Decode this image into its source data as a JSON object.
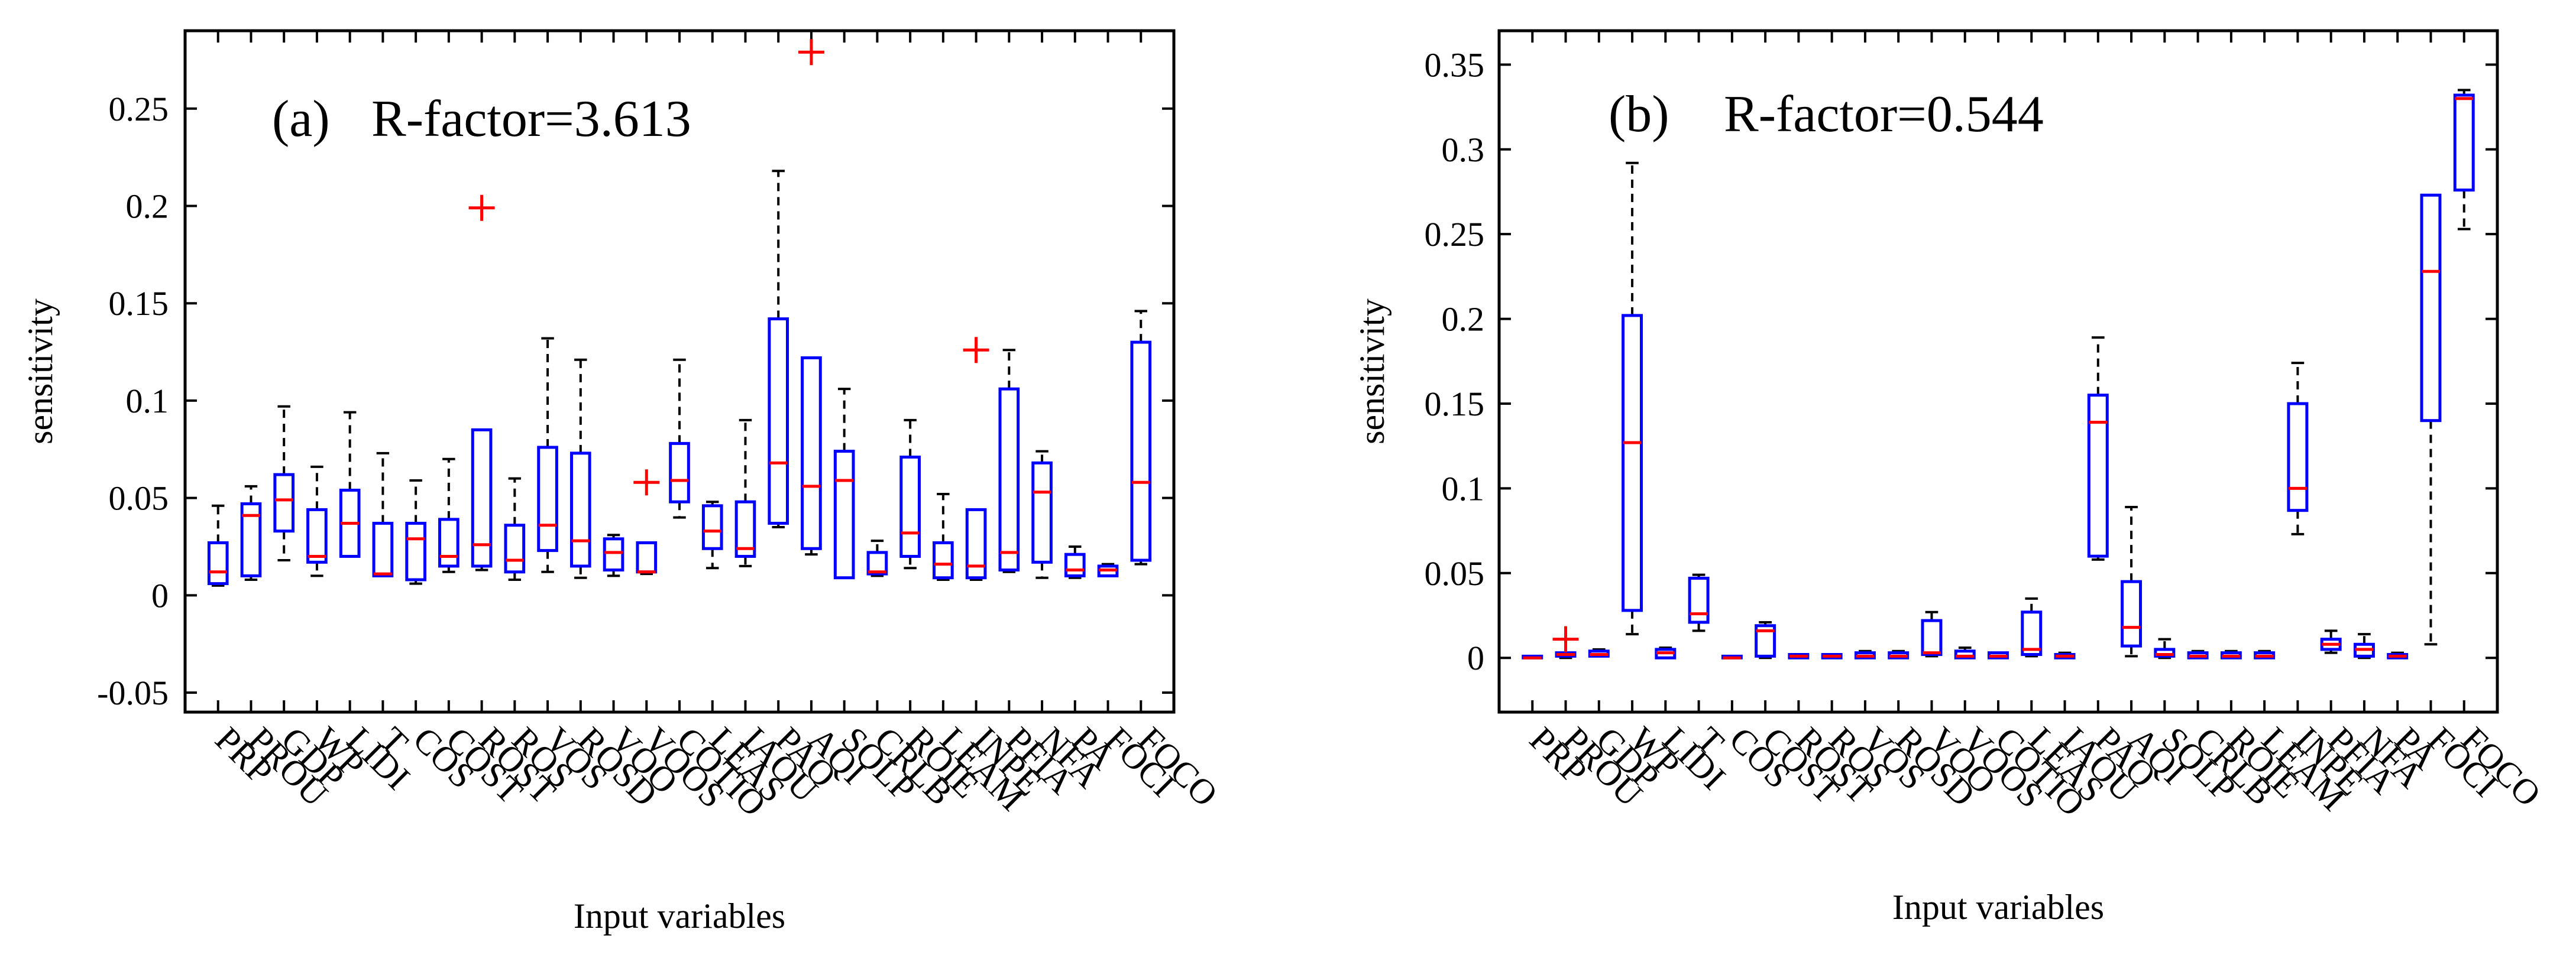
{
  "colors": {
    "box": "#0000ff",
    "median": "#ff0000",
    "whisker": "#000000",
    "outlier": "#ff0000",
    "axis": "#000000"
  },
  "chart_data": [
    {
      "type": "boxplot",
      "panel_label": "(a)",
      "title": "R-factor=3.613",
      "xlabel": "Input variables",
      "ylabel": "sensitivity",
      "ylim": [
        -0.06,
        0.29
      ],
      "yticks": [
        -0.05,
        0,
        0.05,
        0.1,
        0.15,
        0.2,
        0.25
      ],
      "ytick_labels": [
        "-0.05",
        "0",
        "0.05",
        "0.1",
        "0.15",
        "0.2",
        "0.25"
      ],
      "categories": [
        "PRP",
        "PROU",
        "GDP",
        "WP",
        "LIDI",
        "T",
        "COS",
        "COST",
        "ROST",
        "ROS",
        "VOS",
        "ROSD",
        "VOO",
        "VOOS",
        "COTIO",
        "LEAS",
        "IAOU",
        "PAO",
        "AQI",
        "SOLP",
        "CRLB",
        "ROIE",
        "LEAM",
        "INPE",
        "PFIA",
        "NFA",
        "PA",
        "FOCI",
        "FOCO"
      ],
      "boxes": [
        {
          "whisker_low": 0.005,
          "q1": 0.006,
          "median": 0.012,
          "q3": 0.027,
          "whisker_high": 0.046,
          "outliers": []
        },
        {
          "whisker_low": 0.008,
          "q1": 0.01,
          "median": 0.041,
          "q3": 0.047,
          "whisker_high": 0.056,
          "outliers": []
        },
        {
          "whisker_low": 0.018,
          "q1": 0.033,
          "median": 0.049,
          "q3": 0.062,
          "whisker_high": 0.097,
          "outliers": []
        },
        {
          "whisker_low": 0.01,
          "q1": 0.017,
          "median": 0.02,
          "q3": 0.044,
          "whisker_high": 0.066,
          "outliers": []
        },
        {
          "whisker_low": 0.02,
          "q1": 0.02,
          "median": 0.037,
          "q3": 0.054,
          "whisker_high": 0.094,
          "outliers": []
        },
        {
          "whisker_low": 0.01,
          "q1": 0.01,
          "median": 0.011,
          "q3": 0.037,
          "whisker_high": 0.073,
          "outliers": []
        },
        {
          "whisker_low": 0.006,
          "q1": 0.008,
          "median": 0.029,
          "q3": 0.037,
          "whisker_high": 0.059,
          "outliers": []
        },
        {
          "whisker_low": 0.012,
          "q1": 0.015,
          "median": 0.02,
          "q3": 0.039,
          "whisker_high": 0.07,
          "outliers": []
        },
        {
          "whisker_low": 0.013,
          "q1": 0.015,
          "median": 0.026,
          "q3": 0.085,
          "whisker_high": 0.085,
          "outliers": [
            0.199
          ]
        },
        {
          "whisker_low": 0.008,
          "q1": 0.012,
          "median": 0.018,
          "q3": 0.036,
          "whisker_high": 0.06,
          "outliers": []
        },
        {
          "whisker_low": 0.012,
          "q1": 0.023,
          "median": 0.036,
          "q3": 0.076,
          "whisker_high": 0.132,
          "outliers": []
        },
        {
          "whisker_low": 0.009,
          "q1": 0.015,
          "median": 0.028,
          "q3": 0.073,
          "whisker_high": 0.121,
          "outliers": []
        },
        {
          "whisker_low": 0.01,
          "q1": 0.013,
          "median": 0.022,
          "q3": 0.029,
          "whisker_high": 0.031,
          "outliers": []
        },
        {
          "whisker_low": 0.011,
          "q1": 0.012,
          "median": 0.012,
          "q3": 0.027,
          "whisker_high": 0.027,
          "outliers": [
            0.058
          ]
        },
        {
          "whisker_low": 0.04,
          "q1": 0.048,
          "median": 0.059,
          "q3": 0.078,
          "whisker_high": 0.121,
          "outliers": []
        },
        {
          "whisker_low": 0.014,
          "q1": 0.024,
          "median": 0.033,
          "q3": 0.046,
          "whisker_high": 0.048,
          "outliers": []
        },
        {
          "whisker_low": 0.015,
          "q1": 0.02,
          "median": 0.024,
          "q3": 0.048,
          "whisker_high": 0.09,
          "outliers": []
        },
        {
          "whisker_low": 0.035,
          "q1": 0.037,
          "median": 0.068,
          "q3": 0.142,
          "whisker_high": 0.218,
          "outliers": []
        },
        {
          "whisker_low": 0.021,
          "q1": 0.024,
          "median": 0.056,
          "q3": 0.122,
          "whisker_high": 0.122,
          "outliers": [
            0.279
          ]
        },
        {
          "whisker_low": 0.009,
          "q1": 0.009,
          "median": 0.059,
          "q3": 0.074,
          "whisker_high": 0.106,
          "outliers": []
        },
        {
          "whisker_low": 0.01,
          "q1": 0.011,
          "median": 0.012,
          "q3": 0.022,
          "whisker_high": 0.028,
          "outliers": []
        },
        {
          "whisker_low": 0.014,
          "q1": 0.02,
          "median": 0.032,
          "q3": 0.071,
          "whisker_high": 0.09,
          "outliers": []
        },
        {
          "whisker_low": 0.008,
          "q1": 0.009,
          "median": 0.016,
          "q3": 0.027,
          "whisker_high": 0.052,
          "outliers": []
        },
        {
          "whisker_low": 0.008,
          "q1": 0.009,
          "median": 0.015,
          "q3": 0.044,
          "whisker_high": 0.044,
          "outliers": [
            0.126
          ]
        },
        {
          "whisker_low": 0.012,
          "q1": 0.013,
          "median": 0.022,
          "q3": 0.106,
          "whisker_high": 0.126,
          "outliers": []
        },
        {
          "whisker_low": 0.009,
          "q1": 0.017,
          "median": 0.053,
          "q3": 0.068,
          "whisker_high": 0.074,
          "outliers": []
        },
        {
          "whisker_low": 0.009,
          "q1": 0.01,
          "median": 0.013,
          "q3": 0.021,
          "whisker_high": 0.025,
          "outliers": []
        },
        {
          "whisker_low": 0.01,
          "q1": 0.01,
          "median": 0.013,
          "q3": 0.015,
          "whisker_high": 0.016,
          "outliers": []
        },
        {
          "whisker_low": 0.016,
          "q1": 0.018,
          "median": 0.058,
          "q3": 0.13,
          "whisker_high": 0.146,
          "outliers": []
        }
      ]
    },
    {
      "type": "boxplot",
      "panel_label": "(b)",
      "title": "R-factor=0.544",
      "xlabel": "Input variables",
      "ylabel": "sensitivity",
      "ylim": [
        -0.032,
        0.37
      ],
      "yticks": [
        0,
        0.05,
        0.1,
        0.15,
        0.2,
        0.25,
        0.3,
        0.35
      ],
      "ytick_labels": [
        "0",
        "0.05",
        "0.1",
        "0.15",
        "0.2",
        "0.25",
        "0.3",
        "0.35"
      ],
      "categories": [
        "PRP",
        "PROU",
        "GDP",
        "WP",
        "LIDI",
        "T",
        "COS",
        "COST",
        "ROST",
        "ROS",
        "VOS",
        "ROSD",
        "VOO",
        "VOOS",
        "COTIO",
        "LEAS",
        "IAOU",
        "PAO",
        "AQI",
        "SOLP",
        "CRLB",
        "ROIE",
        "LEAM",
        "INPE",
        "PFIA",
        "NFA",
        "PA",
        "FOCI",
        "FOCO"
      ],
      "boxes": [
        {
          "whisker_low": 0.0,
          "q1": 0.0,
          "median": 0.0,
          "q3": 0.001,
          "whisker_high": 0.001,
          "outliers": []
        },
        {
          "whisker_low": 0.0,
          "q1": 0.001,
          "median": 0.002,
          "q3": 0.003,
          "whisker_high": 0.003,
          "outliers": [
            0.011
          ]
        },
        {
          "whisker_low": 0.001,
          "q1": 0.001,
          "median": 0.002,
          "q3": 0.004,
          "whisker_high": 0.005,
          "outliers": []
        },
        {
          "whisker_low": 0.014,
          "q1": 0.028,
          "median": 0.127,
          "q3": 0.202,
          "whisker_high": 0.292,
          "outliers": []
        },
        {
          "whisker_low": 0.0,
          "q1": 0.0,
          "median": 0.003,
          "q3": 0.005,
          "whisker_high": 0.006,
          "outliers": []
        },
        {
          "whisker_low": 0.016,
          "q1": 0.021,
          "median": 0.026,
          "q3": 0.047,
          "whisker_high": 0.049,
          "outliers": []
        },
        {
          "whisker_low": 0.0,
          "q1": 0.0,
          "median": 0.0,
          "q3": 0.001,
          "whisker_high": 0.001,
          "outliers": []
        },
        {
          "whisker_low": 0.0,
          "q1": 0.001,
          "median": 0.016,
          "q3": 0.019,
          "whisker_high": 0.021,
          "outliers": []
        },
        {
          "whisker_low": 0.0,
          "q1": 0.0,
          "median": 0.001,
          "q3": 0.002,
          "whisker_high": 0.002,
          "outliers": []
        },
        {
          "whisker_low": 0.0,
          "q1": 0.0,
          "median": 0.001,
          "q3": 0.002,
          "whisker_high": 0.002,
          "outliers": []
        },
        {
          "whisker_low": 0.0,
          "q1": 0.0,
          "median": 0.001,
          "q3": 0.003,
          "whisker_high": 0.004,
          "outliers": []
        },
        {
          "whisker_low": 0.0,
          "q1": 0.0,
          "median": 0.001,
          "q3": 0.003,
          "whisker_high": 0.004,
          "outliers": []
        },
        {
          "whisker_low": 0.001,
          "q1": 0.002,
          "median": 0.003,
          "q3": 0.022,
          "whisker_high": 0.027,
          "outliers": []
        },
        {
          "whisker_low": 0.0,
          "q1": 0.0,
          "median": 0.001,
          "q3": 0.004,
          "whisker_high": 0.006,
          "outliers": []
        },
        {
          "whisker_low": 0.0,
          "q1": 0.0,
          "median": 0.001,
          "q3": 0.003,
          "whisker_high": 0.003,
          "outliers": []
        },
        {
          "whisker_low": 0.001,
          "q1": 0.002,
          "median": 0.005,
          "q3": 0.027,
          "whisker_high": 0.035,
          "outliers": []
        },
        {
          "whisker_low": 0.0,
          "q1": 0.0,
          "median": 0.001,
          "q3": 0.002,
          "whisker_high": 0.003,
          "outliers": []
        },
        {
          "whisker_low": 0.058,
          "q1": 0.06,
          "median": 0.139,
          "q3": 0.155,
          "whisker_high": 0.189,
          "outliers": []
        },
        {
          "whisker_low": 0.001,
          "q1": 0.007,
          "median": 0.018,
          "q3": 0.045,
          "whisker_high": 0.089,
          "outliers": []
        },
        {
          "whisker_low": 0.0,
          "q1": 0.001,
          "median": 0.002,
          "q3": 0.005,
          "whisker_high": 0.011,
          "outliers": []
        },
        {
          "whisker_low": 0.0,
          "q1": 0.0,
          "median": 0.001,
          "q3": 0.003,
          "whisker_high": 0.004,
          "outliers": []
        },
        {
          "whisker_low": 0.0,
          "q1": 0.0,
          "median": 0.001,
          "q3": 0.003,
          "whisker_high": 0.004,
          "outliers": []
        },
        {
          "whisker_low": 0.0,
          "q1": 0.0,
          "median": 0.001,
          "q3": 0.003,
          "whisker_high": 0.004,
          "outliers": []
        },
        {
          "whisker_low": 0.073,
          "q1": 0.087,
          "median": 0.1,
          "q3": 0.15,
          "whisker_high": 0.174,
          "outliers": []
        },
        {
          "whisker_low": 0.003,
          "q1": 0.005,
          "median": 0.008,
          "q3": 0.011,
          "whisker_high": 0.016,
          "outliers": []
        },
        {
          "whisker_low": 0.0,
          "q1": 0.001,
          "median": 0.005,
          "q3": 0.008,
          "whisker_high": 0.014,
          "outliers": []
        },
        {
          "whisker_low": 0.0,
          "q1": 0.0,
          "median": 0.001,
          "q3": 0.002,
          "whisker_high": 0.003,
          "outliers": []
        },
        {
          "whisker_low": 0.008,
          "q1": 0.14,
          "median": 0.228,
          "q3": 0.273,
          "whisker_high": 0.273,
          "outliers": []
        },
        {
          "whisker_low": 0.253,
          "q1": 0.276,
          "median": 0.33,
          "q3": 0.332,
          "whisker_high": 0.335,
          "outliers": []
        }
      ]
    }
  ]
}
